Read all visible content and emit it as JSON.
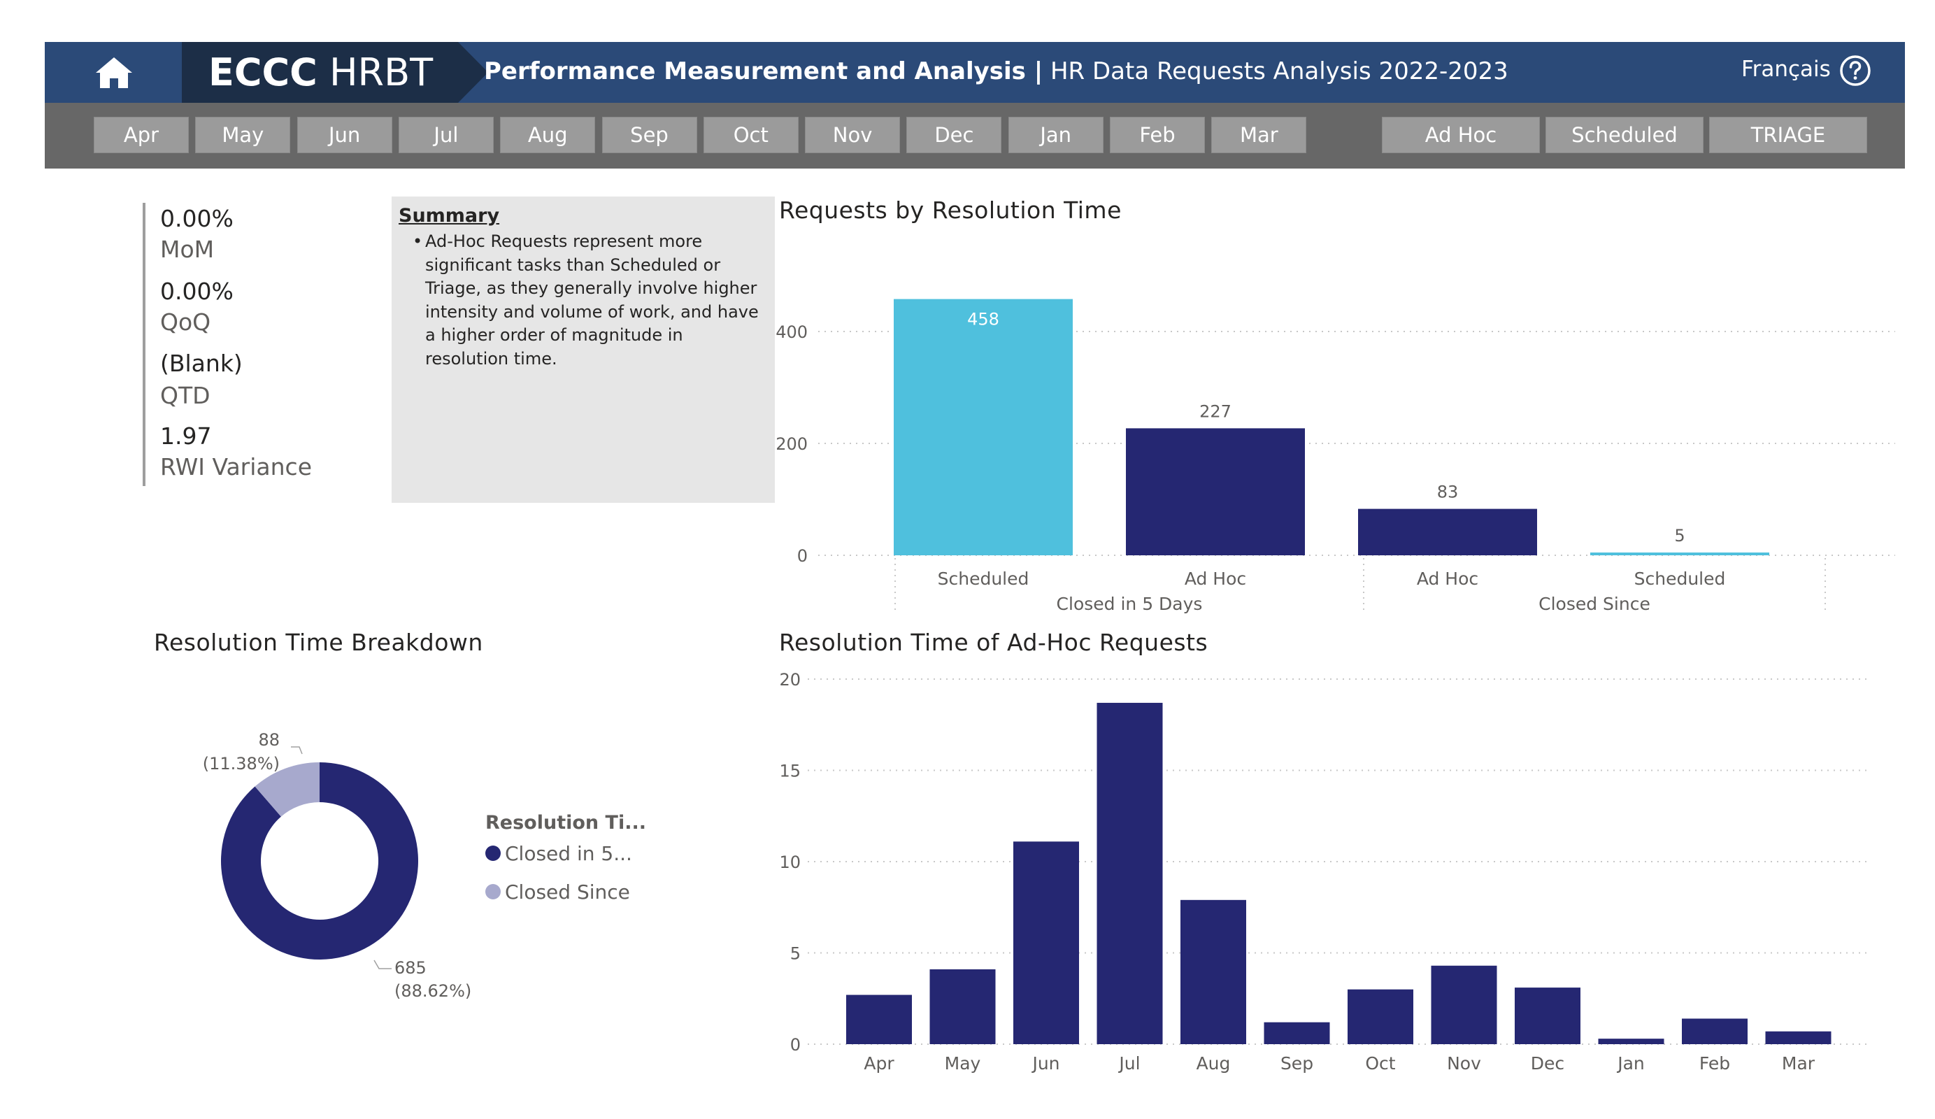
{
  "header": {
    "brand_bold": "ECCC",
    "brand_light": " HRBT",
    "title_bold": "Performance Measurement and Analysis |",
    "title_rest": " HR Data Requests Analysis 2022-2023",
    "language_link": "Français",
    "colors": {
      "header_bg": "#2b4a78",
      "brand_bg": "#1c2e47",
      "slicer_bg": "#676767",
      "chip_bg": "#9b9b9b"
    }
  },
  "month_slicer": [
    "Apr",
    "May",
    "Jun",
    "Jul",
    "Aug",
    "Sep",
    "Oct",
    "Nov",
    "Dec",
    "Jan",
    "Feb",
    "Mar"
  ],
  "type_slicer": [
    "Ad Hoc",
    "Scheduled",
    "TRIAGE"
  ],
  "kpis": [
    {
      "value": "0.00%",
      "label": "MoM"
    },
    {
      "value": "0.00%",
      "label": "QoQ"
    },
    {
      "value": "(Blank)",
      "label": "QTD"
    },
    {
      "value": "1.97",
      "label": "RWI Variance"
    }
  ],
  "summary": {
    "title": "Summary",
    "bullet": "Ad-Hoc Requests represent more significant tasks than Scheduled or Triage, as they generally involve higher intensity and volume of work, and have a higher order of magnitude in resolution time."
  },
  "chart_data": [
    {
      "type": "bar",
      "title": "Requests by Resolution Time",
      "groups": [
        {
          "name": "Closed in 5 Days",
          "categories": [
            "Scheduled",
            "Ad Hoc"
          ],
          "values": [
            458,
            227
          ]
        },
        {
          "name": "Closed Since",
          "categories": [
            "Ad Hoc",
            "Scheduled"
          ],
          "values": [
            83,
            5
          ]
        }
      ],
      "colors": {
        "Scheduled": "#4fc0dd",
        "Ad Hoc": "#252772"
      },
      "yticks": [
        0,
        200,
        400
      ],
      "ylim": [
        0,
        480
      ],
      "grid": true
    },
    {
      "type": "pie",
      "title": "Resolution Time Breakdown",
      "legend_title": "Resolution Ti...",
      "slices": [
        {
          "label": "Closed in 5...",
          "value": 685,
          "percent": "(88.62%)",
          "color": "#252772"
        },
        {
          "label": "Closed Since",
          "value": 88,
          "percent": "(11.38%)",
          "color": "#a7a9cd"
        }
      ],
      "legend_position": "right"
    },
    {
      "type": "bar",
      "title": "Resolution Time of Ad-Hoc Requests",
      "categories": [
        "Apr",
        "May",
        "Jun",
        "Jul",
        "Aug",
        "Sep",
        "Oct",
        "Nov",
        "Dec",
        "Jan",
        "Feb",
        "Mar"
      ],
      "values": [
        2.7,
        4.1,
        11.1,
        18.7,
        7.9,
        1.2,
        3.0,
        4.3,
        3.1,
        0.3,
        1.4,
        0.7
      ],
      "yticks": [
        0,
        5,
        10,
        15,
        20
      ],
      "ylim": [
        0,
        20
      ],
      "color": "#252772",
      "grid": true
    }
  ]
}
